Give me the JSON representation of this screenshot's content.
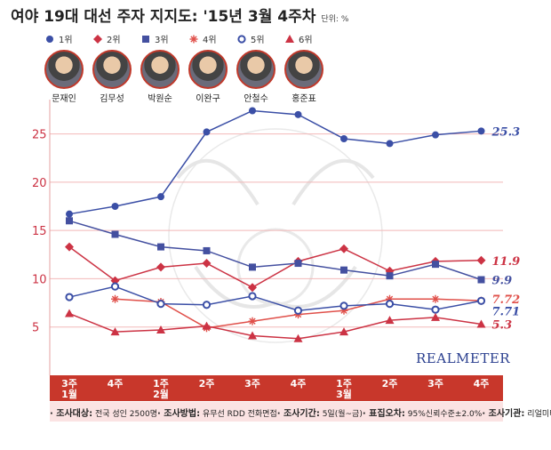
{
  "title": "여야 19대 대선 주자 지지도: '15년 3월 4주차",
  "unit": "단위: %",
  "brand": "REALMETER",
  "legend": [
    {
      "rank": "1위",
      "marker": "circle",
      "color": "#3b4fa6"
    },
    {
      "rank": "2위",
      "marker": "diamond",
      "color": "#cc3344"
    },
    {
      "rank": "3위",
      "marker": "square",
      "color": "#4450a0"
    },
    {
      "rank": "4위",
      "marker": "star",
      "color": "#e0504a"
    },
    {
      "rank": "5위",
      "marker": "open-circle",
      "color": "#3b4fa6"
    },
    {
      "rank": "6위",
      "marker": "triangle",
      "color": "#cc3344"
    }
  ],
  "candidates": [
    "문재인",
    "김무성",
    "박원순",
    "이완구",
    "안철수",
    "홍준표"
  ],
  "footer": [
    {
      "key": "조사대상:",
      "value": "전국 성인 2500명"
    },
    {
      "key": "조사방법:",
      "value": "유무선 RDD 전화면접"
    },
    {
      "key": "조사기간:",
      "value": "5일(월~금)"
    },
    {
      "key": "표집오차:",
      "value": "95%신뢰수준±2.0%"
    },
    {
      "key": "조사기관:",
      "value": "리얼미터"
    }
  ],
  "colors": {
    "band": "#c8372b",
    "axis": "#cc3344",
    "grid": "#f2b8b8"
  },
  "chart_data": {
    "type": "line",
    "categories": [
      "3주\n1월",
      "4주",
      "1주\n2월",
      "2주",
      "3주",
      "4주",
      "1주\n3월",
      "2주",
      "3주",
      "4주"
    ],
    "ylim": [
      0,
      28
    ],
    "yticks": [
      5,
      10,
      15,
      20,
      25
    ],
    "grid": "horizontal",
    "series": [
      {
        "name": "1위",
        "marker": "circle",
        "color": "#3b4fa6",
        "values": [
          16.7,
          17.5,
          18.5,
          25.2,
          27.4,
          27.0,
          24.5,
          24.0,
          24.9,
          25.3
        ],
        "end_label": "25.3"
      },
      {
        "name": "2위",
        "marker": "diamond",
        "color": "#cc3344",
        "values": [
          13.3,
          9.8,
          11.2,
          11.6,
          9.1,
          11.8,
          13.1,
          10.8,
          11.8,
          11.9
        ],
        "end_label": "11.9"
      },
      {
        "name": "3위",
        "marker": "square",
        "color": "#4450a0",
        "values": [
          16.0,
          14.6,
          13.3,
          12.9,
          11.2,
          11.6,
          10.9,
          10.3,
          11.5,
          9.9
        ],
        "end_label": "9.9"
      },
      {
        "name": "4위",
        "marker": "star",
        "color": "#e0504a",
        "values": [
          null,
          7.9,
          7.6,
          4.9,
          5.6,
          6.3,
          6.7,
          7.9,
          7.9,
          7.72
        ],
        "end_label": "7.72"
      },
      {
        "name": "5위",
        "marker": "open-circle",
        "color": "#3b4fa6",
        "values": [
          8.1,
          9.2,
          7.4,
          7.3,
          8.2,
          6.7,
          7.2,
          7.4,
          6.8,
          7.71
        ],
        "end_label": "7.71"
      },
      {
        "name": "6위",
        "marker": "triangle",
        "color": "#cc3344",
        "values": [
          6.4,
          4.5,
          4.7,
          5.1,
          4.1,
          3.8,
          4.5,
          5.7,
          6.0,
          5.3
        ],
        "end_label": "5.3"
      }
    ]
  }
}
